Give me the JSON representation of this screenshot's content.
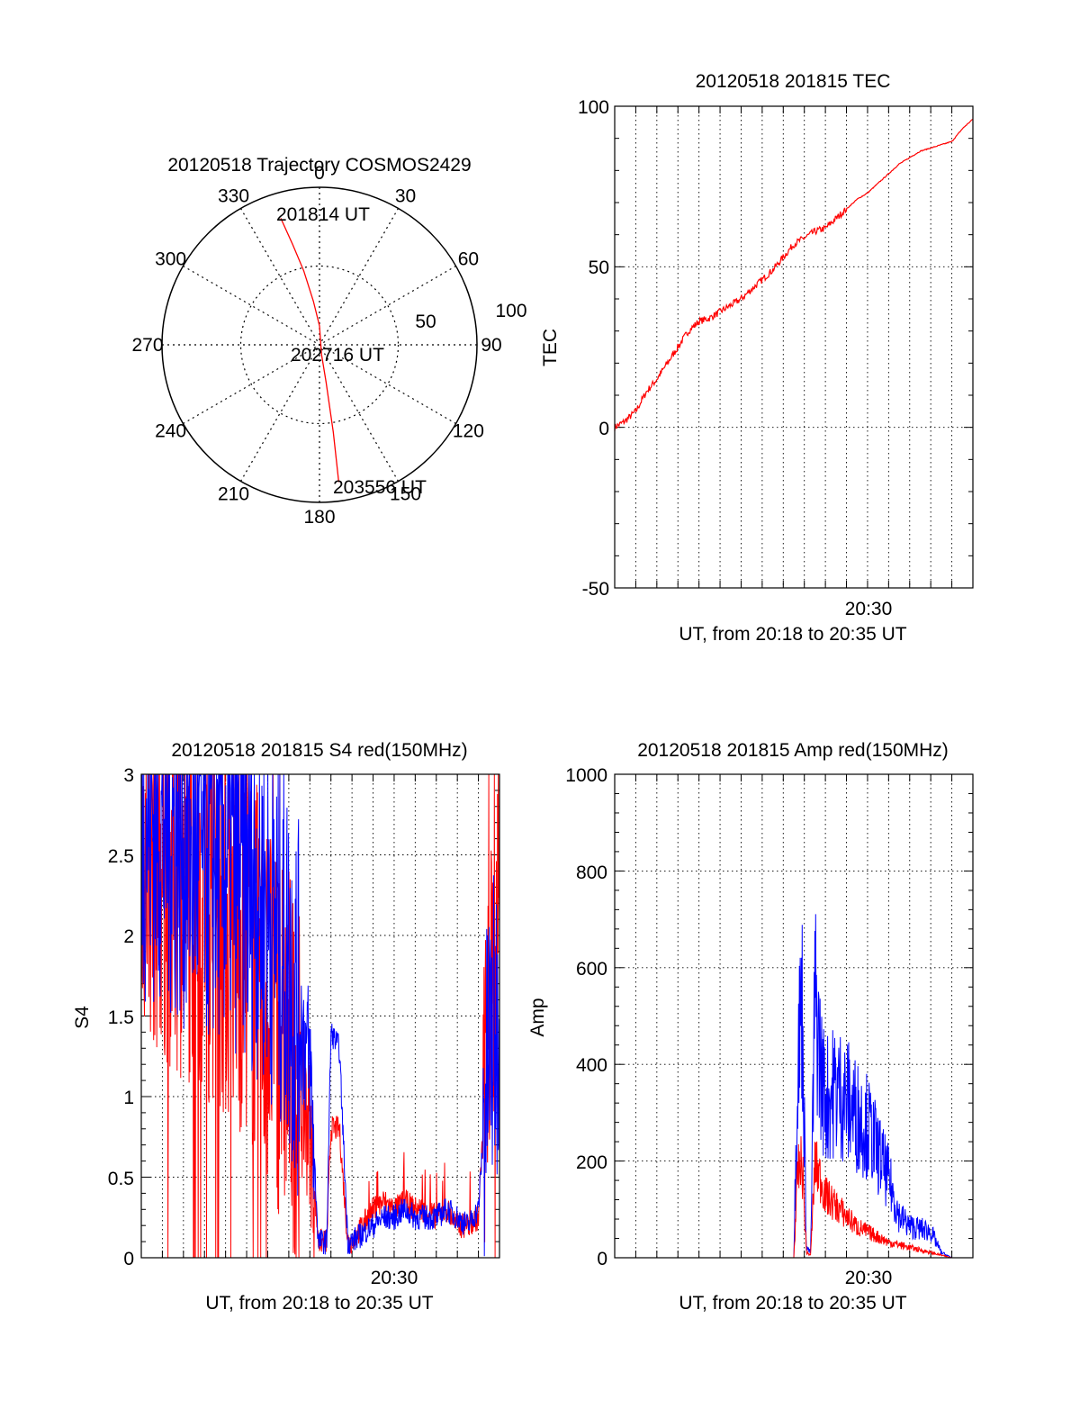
{
  "figure": {
    "polar": {
      "title": "20120518 Trajectory COSMOS2429",
      "angle_labels": [
        "0",
        "30",
        "60",
        "90",
        "120",
        "150",
        "180",
        "210",
        "240",
        "270",
        "300",
        "330"
      ],
      "radius_labels": [
        "50",
        "100"
      ],
      "annotations": {
        "start": "201814 UT",
        "mid": "202716 UT",
        "end": "203556 UT"
      }
    },
    "tec": {
      "title": "20120518 201815 TEC",
      "ylabel": "TEC",
      "yticks": [
        "100",
        "50",
        "0",
        "-50"
      ],
      "xtick": "20:30",
      "xlabel": "UT, from 20:18 to 20:35 UT"
    },
    "s4": {
      "title": "20120518 201815 S4 red(150MHz)",
      "ylabel": "S4",
      "yticks": [
        "3",
        "2.5",
        "2",
        "1.5",
        "1",
        "0.5",
        "0"
      ],
      "xtick": "20:30",
      "xlabel": "UT, from 20:18 to 20:35 UT"
    },
    "amp": {
      "title": "20120518 201815 Amp red(150MHz)",
      "ylabel": "Amp",
      "yticks": [
        "1000",
        "800",
        "600",
        "400",
        "200",
        "0"
      ],
      "xtick": "20:30",
      "xlabel": "UT, from 20:18 to 20:35 UT"
    }
  },
  "colors": {
    "red": "#ff0000",
    "blue": "#0000ff",
    "grid": "#000000"
  },
  "chart_data": [
    {
      "type": "scatter",
      "title": "20120518 Trajectory COSMOS2429",
      "coordinate_system": "polar (azimuth deg, zenith angle deg)",
      "radial_range": [
        0,
        100
      ],
      "series": [
        {
          "color": "red",
          "azimuth": [
            343,
            345,
            348,
            352,
            0,
            168,
            170,
            171,
            172
          ],
          "zenith": [
            84,
            66,
            48,
            28,
            12,
            6,
            24,
            56,
            88
          ]
        }
      ]
    },
    {
      "type": "line",
      "title": "20120518 201815 TEC",
      "ylabel": "TEC",
      "xlabel": "UT, from 20:18 to 20:35 UT",
      "xlim": [
        18,
        35
      ],
      "ylim": [
        -50,
        100
      ],
      "series": [
        {
          "color": "red",
          "x": [
            18.0,
            18.5,
            19.0,
            19.5,
            20.0,
            20.5,
            21.0,
            21.5,
            22.0,
            22.5,
            23.0,
            23.5,
            24.0,
            24.5,
            25.0,
            25.5,
            26.0,
            26.5,
            27.0,
            27.5,
            28.0,
            28.5,
            29.0,
            29.5,
            30.0,
            30.5,
            31.0,
            31.5,
            32.0,
            32.5,
            33.0,
            33.5,
            34.0,
            34.5,
            35.0
          ],
          "y": [
            0,
            2,
            5,
            11,
            15,
            20,
            25,
            30,
            33,
            34,
            36,
            38,
            40,
            43,
            46,
            49,
            53,
            57,
            59,
            61,
            62,
            65,
            68,
            71,
            73,
            76,
            79,
            82,
            84,
            86,
            87,
            88,
            89,
            93,
            96
          ]
        }
      ]
    },
    {
      "type": "line",
      "title": "20120518 201815 S4 red(150MHz)",
      "ylabel": "S4",
      "xlabel": "UT, from 20:18 to 20:35 UT",
      "xlim": [
        18,
        35
      ],
      "ylim": [
        0,
        3
      ],
      "series": [
        {
          "color": "blue",
          "x": [
            18.0,
            19.0,
            20.0,
            21.0,
            22.0,
            23.0,
            24.0,
            25.0,
            25.5,
            26.0,
            26.4,
            26.8,
            27.0,
            27.4,
            27.8,
            28.0,
            28.5,
            29.0,
            29.5,
            30.0,
            30.5,
            31.0,
            31.5,
            32.0,
            32.5,
            33.0,
            33.5,
            34.0,
            34.5,
            35.0
          ],
          "y": [
            2.8,
            2.7,
            2.6,
            2.5,
            2.5,
            2.4,
            2.2,
            1.8,
            1.5,
            1.2,
            0.1,
            0.1,
            1.4,
            1.3,
            0.1,
            0.1,
            0.15,
            0.2,
            0.25,
            0.25,
            0.3,
            0.25,
            0.25,
            0.25,
            0.3,
            0.25,
            0.2,
            0.3,
            1.3,
            1.5
          ]
        },
        {
          "color": "red",
          "x": [
            18.0,
            19.0,
            20.0,
            21.0,
            22.0,
            23.0,
            24.0,
            25.0,
            25.5,
            26.0,
            26.4,
            26.8,
            27.0,
            27.4,
            27.8,
            28.0,
            28.5,
            29.0,
            29.5,
            30.0,
            30.5,
            31.0,
            31.5,
            32.0,
            32.5,
            33.0,
            33.5,
            34.0,
            34.5,
            35.0
          ],
          "y": [
            2.6,
            2.4,
            2.3,
            2.2,
            2.0,
            1.9,
            1.6,
            1.3,
            1.0,
            0.8,
            0.1,
            0.1,
            0.8,
            0.8,
            0.1,
            0.1,
            0.2,
            0.3,
            0.35,
            0.3,
            0.35,
            0.3,
            0.3,
            0.25,
            0.3,
            0.2,
            0.2,
            0.25,
            1.5,
            2.0
          ]
        }
      ]
    },
    {
      "type": "line",
      "title": "20120518 201815 Amp red(150MHz)",
      "ylabel": "Amp",
      "xlabel": "UT, from 20:18 to 20:35 UT",
      "xlim": [
        18,
        35
      ],
      "ylim": [
        0,
        1000
      ],
      "series": [
        {
          "color": "blue",
          "x": [
            18.0,
            20.0,
            22.0,
            24.0,
            26.0,
            26.5,
            26.7,
            26.9,
            27.1,
            27.3,
            27.5,
            27.8,
            28.0,
            28.5,
            29.0,
            29.5,
            30.0,
            30.5,
            31.0,
            31.5,
            32.0,
            32.5,
            33.0,
            33.5,
            34.0,
            35.0
          ],
          "y": [
            0,
            0,
            0,
            0,
            0,
            0,
            400,
            480,
            20,
            10,
            500,
            350,
            300,
            320,
            300,
            270,
            250,
            200,
            150,
            80,
            60,
            55,
            50,
            10,
            0,
            0
          ]
        },
        {
          "color": "red",
          "x": [
            18.0,
            20.0,
            22.0,
            24.0,
            26.0,
            26.5,
            26.7,
            26.9,
            27.1,
            27.3,
            27.5,
            27.8,
            28.0,
            28.5,
            29.0,
            29.5,
            30.0,
            30.5,
            31.0,
            31.5,
            32.0,
            32.5,
            33.0,
            33.5,
            34.0,
            35.0
          ],
          "y": [
            0,
            0,
            0,
            0,
            0,
            0,
            170,
            180,
            10,
            5,
            180,
            150,
            120,
            100,
            80,
            60,
            50,
            40,
            30,
            25,
            20,
            15,
            10,
            5,
            0,
            0
          ]
        }
      ]
    }
  ]
}
